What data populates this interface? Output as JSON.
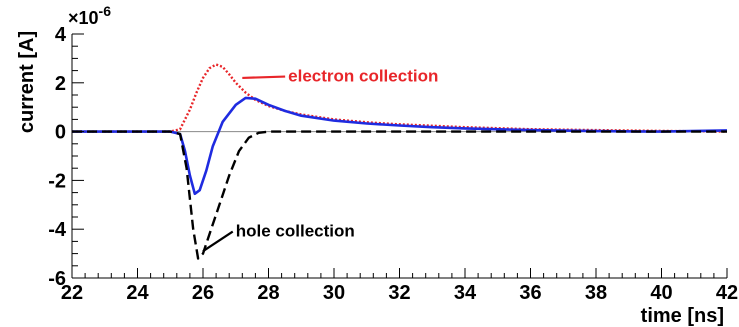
{
  "chart_data": {
    "type": "line",
    "xlabel": "time [ns]",
    "ylabel": "current [A]",
    "y_exponent_label": "×10",
    "y_exponent_power": "-6",
    "xlim": [
      22,
      42
    ],
    "ylim": [
      -6,
      4
    ],
    "x_ticks": [
      22,
      24,
      26,
      28,
      30,
      32,
      34,
      36,
      38,
      40,
      42
    ],
    "y_ticks": [
      -6,
      -4,
      -2,
      0,
      2,
      4
    ],
    "zero_line": true,
    "grid": false,
    "annotations": [
      {
        "text": "electron collection",
        "x": 28.6,
        "y": 2.05,
        "color": "#e8262a",
        "arrow_to": [
          27.2,
          2.2
        ]
      },
      {
        "text": "hole collection",
        "x": 27.0,
        "y": -4.3,
        "color": "#000000",
        "arrow_to": [
          26.0,
          -4.9
        ]
      }
    ],
    "series": [
      {
        "color": "#e8262a",
        "style": "dotted",
        "x": [
          22,
          25.0,
          25.3,
          25.6,
          25.8,
          26.0,
          26.2,
          26.4,
          26.6,
          26.8,
          27.0,
          27.3,
          27.6,
          28.0,
          28.5,
          29.0,
          30.0,
          31.0,
          32.0,
          34.0,
          36.0,
          38.0,
          40.0,
          42.0
        ],
        "y": [
          0,
          0,
          0.1,
          0.9,
          1.6,
          2.2,
          2.6,
          2.75,
          2.65,
          2.35,
          2.0,
          1.6,
          1.3,
          1.05,
          0.85,
          0.7,
          0.5,
          0.38,
          0.3,
          0.18,
          0.1,
          0.06,
          0.03,
          0
        ]
      },
      {
        "color": "#1f2be0",
        "style": "solid",
        "x": [
          22,
          25.0,
          25.3,
          25.45,
          25.6,
          25.75,
          25.9,
          26.1,
          26.3,
          26.6,
          27.0,
          27.3,
          27.6,
          28.0,
          28.5,
          29.0,
          30.0,
          31.0,
          32.0,
          33.0,
          34.0,
          36.0,
          38.0,
          40.0,
          42.0
        ],
        "y": [
          0,
          0,
          -0.1,
          -0.8,
          -1.8,
          -2.55,
          -2.4,
          -1.6,
          -0.6,
          0.4,
          1.1,
          1.38,
          1.35,
          1.1,
          0.85,
          0.65,
          0.45,
          0.33,
          0.25,
          0.18,
          0.13,
          0.06,
          0.02,
          0,
          0.05
        ]
      },
      {
        "color": "#000000",
        "style": "dashed",
        "x": [
          22,
          25.0,
          25.3,
          25.5,
          25.7,
          25.85,
          26.0,
          26.2,
          26.5,
          26.8,
          27.1,
          27.4,
          27.7,
          28.0,
          30.0,
          32.0,
          34.0,
          36.0,
          38.0,
          40.0,
          42.0
        ],
        "y": [
          0,
          0,
          -0.1,
          -1.5,
          -4.0,
          -5.2,
          -5.0,
          -4.2,
          -3.0,
          -1.8,
          -0.8,
          -0.25,
          -0.05,
          0,
          0,
          0,
          0,
          0,
          0,
          0,
          0
        ]
      }
    ]
  }
}
